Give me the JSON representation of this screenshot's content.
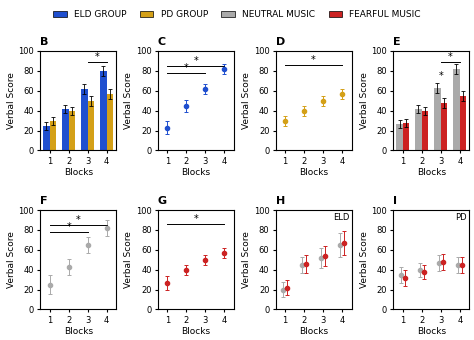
{
  "chart_data": [
    {
      "type": "legend",
      "series": [
        {
          "name": "ELD GROUP",
          "color": "#1f4fcf"
        },
        {
          "name": "PD GROUP",
          "color": "#d4a017"
        },
        {
          "name": "NEUTRAL MUSIC",
          "color": "#aaaaaa"
        },
        {
          "name": "FEARFUL MUSIC",
          "color": "#cc2222"
        }
      ]
    },
    {
      "type": "bar",
      "title": "B",
      "xlabel": "Blocks",
      "ylabel": "Verbal Score",
      "x": [
        1,
        2,
        3,
        4
      ],
      "xlim": [
        0.5,
        4.5
      ],
      "xticks": [
        1,
        2,
        3,
        4
      ],
      "ylim": [
        0,
        100
      ],
      "yticks": [
        0,
        20,
        40,
        60,
        80,
        100
      ],
      "series": [
        {
          "color": "#1f4fcf",
          "values": [
            25,
            42,
            62,
            80
          ],
          "errors": [
            4,
            4,
            5,
            5
          ]
        },
        {
          "color": "#d4a017",
          "values": [
            30,
            40,
            50,
            57
          ],
          "errors": [
            4,
            4,
            5,
            5
          ]
        }
      ],
      "annotations": [
        {
          "text": "*",
          "x": [
            3,
            4
          ],
          "y": 89
        }
      ]
    },
    {
      "type": "scatter",
      "title": "C",
      "xlabel": "Blocks",
      "ylabel": "Verbal Score",
      "x": [
        1,
        2,
        3,
        4
      ],
      "xlim": [
        0.5,
        4.5
      ],
      "xticks": [
        1,
        2,
        3,
        4
      ],
      "ylim": [
        0,
        100
      ],
      "yticks": [
        0,
        20,
        40,
        60,
        80,
        100
      ],
      "series": [
        {
          "color": "#1f4fcf",
          "values": [
            23,
            45,
            62,
            82
          ],
          "errors": [
            7,
            6,
            5,
            5
          ]
        }
      ],
      "annotations": [
        {
          "text": "*",
          "x": [
            1,
            3
          ],
          "y": 78
        },
        {
          "text": "*",
          "x": [
            1,
            4
          ],
          "y": 85
        }
      ]
    },
    {
      "type": "scatter",
      "title": "D",
      "xlabel": "Blocks",
      "ylabel": "Verbal Score",
      "x": [
        1,
        2,
        3,
        4
      ],
      "xlim": [
        0.5,
        4.5
      ],
      "xticks": [
        1,
        2,
        3,
        4
      ],
      "ylim": [
        0,
        100
      ],
      "yticks": [
        0,
        20,
        40,
        60,
        80,
        100
      ],
      "series": [
        {
          "color": "#d4a017",
          "values": [
            30,
            40,
            50,
            57
          ],
          "errors": [
            5,
            5,
            5,
            5
          ]
        }
      ],
      "annotations": [
        {
          "text": "*",
          "x": [
            1,
            4
          ],
          "y": 86
        }
      ]
    },
    {
      "type": "bar",
      "title": "E",
      "xlabel": "Blocks",
      "ylabel": "Verbal Score",
      "x": [
        1,
        2,
        3,
        4
      ],
      "xlim": [
        0.5,
        4.5
      ],
      "xticks": [
        1,
        2,
        3,
        4
      ],
      "ylim": [
        0,
        100
      ],
      "yticks": [
        0,
        20,
        40,
        60,
        80,
        100
      ],
      "series": [
        {
          "color": "#aaaaaa",
          "values": [
            27,
            42,
            63,
            82
          ],
          "errors": [
            4,
            4,
            5,
            5
          ]
        },
        {
          "color": "#cc2222",
          "values": [
            28,
            40,
            48,
            55
          ],
          "errors": [
            4,
            4,
            5,
            5
          ]
        }
      ],
      "annotations": [
        {
          "text": "*",
          "x": 3,
          "y": 70
        },
        {
          "text": "*",
          "x": [
            3,
            4
          ],
          "y": 89
        }
      ]
    },
    {
      "type": "scatter",
      "title": "F",
      "xlabel": "Blocks",
      "ylabel": "Verbal Score",
      "x": [
        1,
        2,
        3,
        4
      ],
      "xlim": [
        0.5,
        4.5
      ],
      "xticks": [
        1,
        2,
        3,
        4
      ],
      "ylim": [
        0,
        100
      ],
      "yticks": [
        0,
        20,
        40,
        60,
        80,
        100
      ],
      "series": [
        {
          "color": "#aaaaaa",
          "values": [
            25,
            43,
            65,
            82
          ],
          "errors": [
            10,
            8,
            8,
            8
          ]
        }
      ],
      "annotations": [
        {
          "text": "*",
          "x": [
            1,
            3
          ],
          "y": 78
        },
        {
          "text": "*",
          "x": [
            1,
            4
          ],
          "y": 85
        }
      ]
    },
    {
      "type": "scatter",
      "title": "G",
      "xlabel": "Blocks",
      "ylabel": "Verbal Score",
      "x": [
        1,
        2,
        3,
        4
      ],
      "xlim": [
        0.5,
        4.5
      ],
      "xticks": [
        1,
        2,
        3,
        4
      ],
      "ylim": [
        0,
        100
      ],
      "yticks": [
        0,
        20,
        40,
        60,
        80,
        100
      ],
      "series": [
        {
          "color": "#cc2222",
          "values": [
            27,
            40,
            50,
            57
          ],
          "errors": [
            7,
            5,
            5,
            5
          ]
        }
      ],
      "annotations": [
        {
          "text": "*",
          "x": [
            1,
            4
          ],
          "y": 86
        }
      ]
    },
    {
      "type": "scatter",
      "title": "H",
      "subtitle": "ELD",
      "xlabel": "Blocks",
      "ylabel": "Verbal Score",
      "x": [
        1,
        2,
        3,
        4
      ],
      "xlim": [
        0.5,
        4.5
      ],
      "xticks": [
        1,
        2,
        3,
        4
      ],
      "ylim": [
        0,
        100
      ],
      "yticks": [
        0,
        20,
        40,
        60,
        80,
        100
      ],
      "series": [
        {
          "color": "#aaaaaa",
          "values": [
            20,
            45,
            52,
            65
          ],
          "errors": [
            8,
            8,
            10,
            12
          ]
        },
        {
          "color": "#cc2222",
          "values": [
            22,
            46,
            54,
            67
          ],
          "errors": [
            8,
            9,
            10,
            12
          ]
        }
      ]
    },
    {
      "type": "scatter",
      "title": "I",
      "subtitle": "PD",
      "xlabel": "Blocks",
      "ylabel": "Verbal Score",
      "x": [
        1,
        2,
        3,
        4
      ],
      "xlim": [
        0.5,
        4.5
      ],
      "xticks": [
        1,
        2,
        3,
        4
      ],
      "ylim": [
        0,
        100
      ],
      "yticks": [
        0,
        20,
        40,
        60,
        80,
        100
      ],
      "series": [
        {
          "color": "#aaaaaa",
          "values": [
            35,
            40,
            47,
            45
          ],
          "errors": [
            8,
            7,
            8,
            8
          ]
        },
        {
          "color": "#cc2222",
          "values": [
            32,
            38,
            48,
            45
          ],
          "errors": [
            8,
            7,
            8,
            8
          ]
        }
      ]
    }
  ]
}
